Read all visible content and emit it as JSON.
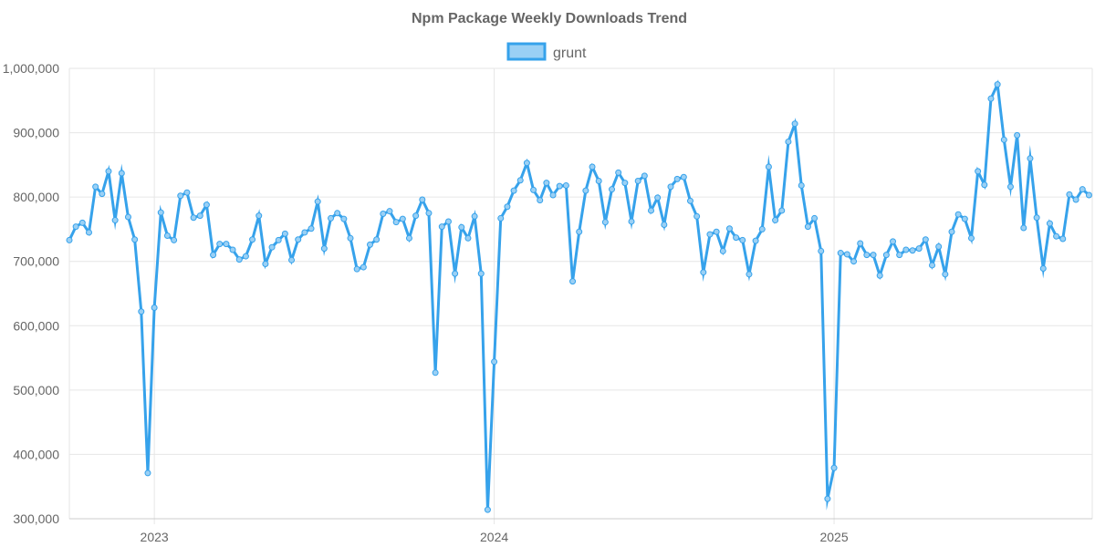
{
  "chart_data": {
    "type": "line",
    "title": "Npm Package Weekly Downloads Trend",
    "xlabel": "",
    "ylabel": "",
    "ylim": [
      300000,
      1000000
    ],
    "yticks": [
      "1,000,000",
      "900,000",
      "800,000",
      "700,000",
      "600,000",
      "500,000",
      "400,000",
      "300,000"
    ],
    "ytick_values": [
      1000000,
      900000,
      800000,
      700000,
      600000,
      500000,
      400000,
      300000
    ],
    "xticks": [
      "2023",
      "2024",
      "2025"
    ],
    "xtick_values": [
      10,
      62,
      114
    ],
    "x_range": [
      -3,
      153.5
    ],
    "grid": true,
    "legend": {
      "position": "top-center"
    },
    "colors": {
      "line": "#36a2eb",
      "fill": "#9ad0f5",
      "grid": "#e6e6e6",
      "text": "#666666"
    },
    "series": [
      {
        "name": "grunt",
        "x_start": -3,
        "values": [
          733000,
          754000,
          760000,
          745000,
          816000,
          805000,
          840000,
          764000,
          837000,
          769000,
          734000,
          622000,
          371000,
          628000,
          776000,
          740000,
          733000,
          802000,
          807000,
          768000,
          771000,
          788000,
          710000,
          727000,
          727000,
          718000,
          703000,
          708000,
          734000,
          771000,
          696000,
          722000,
          733000,
          743000,
          702000,
          734000,
          745000,
          751000,
          793000,
          720000,
          767000,
          775000,
          766000,
          736000,
          688000,
          691000,
          726000,
          734000,
          774000,
          778000,
          761000,
          766000,
          736000,
          771000,
          796000,
          775000,
          527000,
          754000,
          762000,
          681000,
          753000,
          736000,
          770000,
          681000,
          314000,
          544000,
          767000,
          785000,
          810000,
          826000,
          853000,
          811000,
          795000,
          822000,
          803000,
          817000,
          818000,
          669000,
          746000,
          810000,
          847000,
          825000,
          761000,
          812000,
          838000,
          822000,
          762000,
          825000,
          833000,
          779000,
          799000,
          757000,
          816000,
          828000,
          831000,
          794000,
          770000,
          683000,
          742000,
          746000,
          716000,
          751000,
          737000,
          733000,
          680000,
          732000,
          750000,
          847000,
          764000,
          779000,
          886000,
          914000,
          818000,
          754000,
          767000,
          716000,
          331000,
          379000,
          713000,
          711000,
          700000,
          728000,
          710000,
          710000,
          678000,
          710000,
          731000,
          710000,
          718000,
          717000,
          720000,
          734000,
          694000,
          723000,
          680000,
          746000,
          773000,
          766000,
          736000,
          840000,
          819000,
          953000,
          975000,
          889000,
          816000,
          896000,
          752000,
          860000,
          768000,
          689000,
          759000,
          739000,
          735000,
          804000,
          796000,
          812000,
          803000
        ]
      }
    ]
  }
}
